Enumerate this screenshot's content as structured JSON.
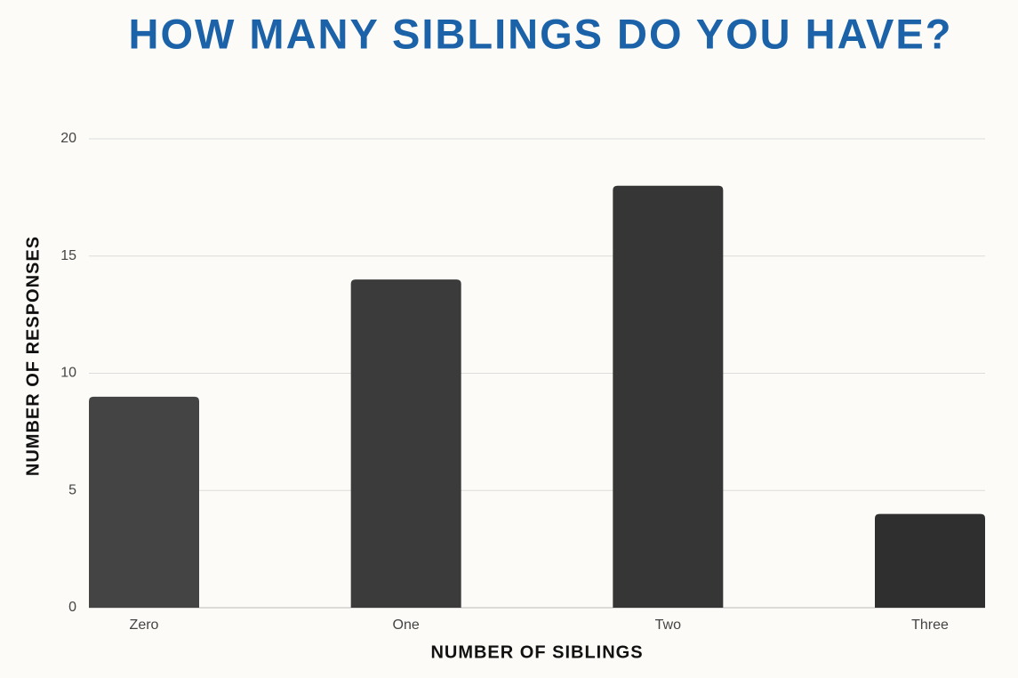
{
  "chart_data": {
    "type": "bar",
    "title": "HOW MANY SIBLINGS DO YOU HAVE?",
    "x_label": "NUMBER OF SIBLINGS",
    "y_label": "NUMBER OF RESPONSES",
    "categories": [
      "Zero",
      "One",
      "Two",
      "Three"
    ],
    "values": [
      9,
      14,
      18,
      4
    ],
    "colors": [
      "#444444",
      "#3b3b3b",
      "#363636",
      "#2f2f2f"
    ],
    "ylim": [
      0,
      20
    ],
    "yticks": [
      0,
      5,
      10,
      15,
      20
    ],
    "grid": true
  }
}
